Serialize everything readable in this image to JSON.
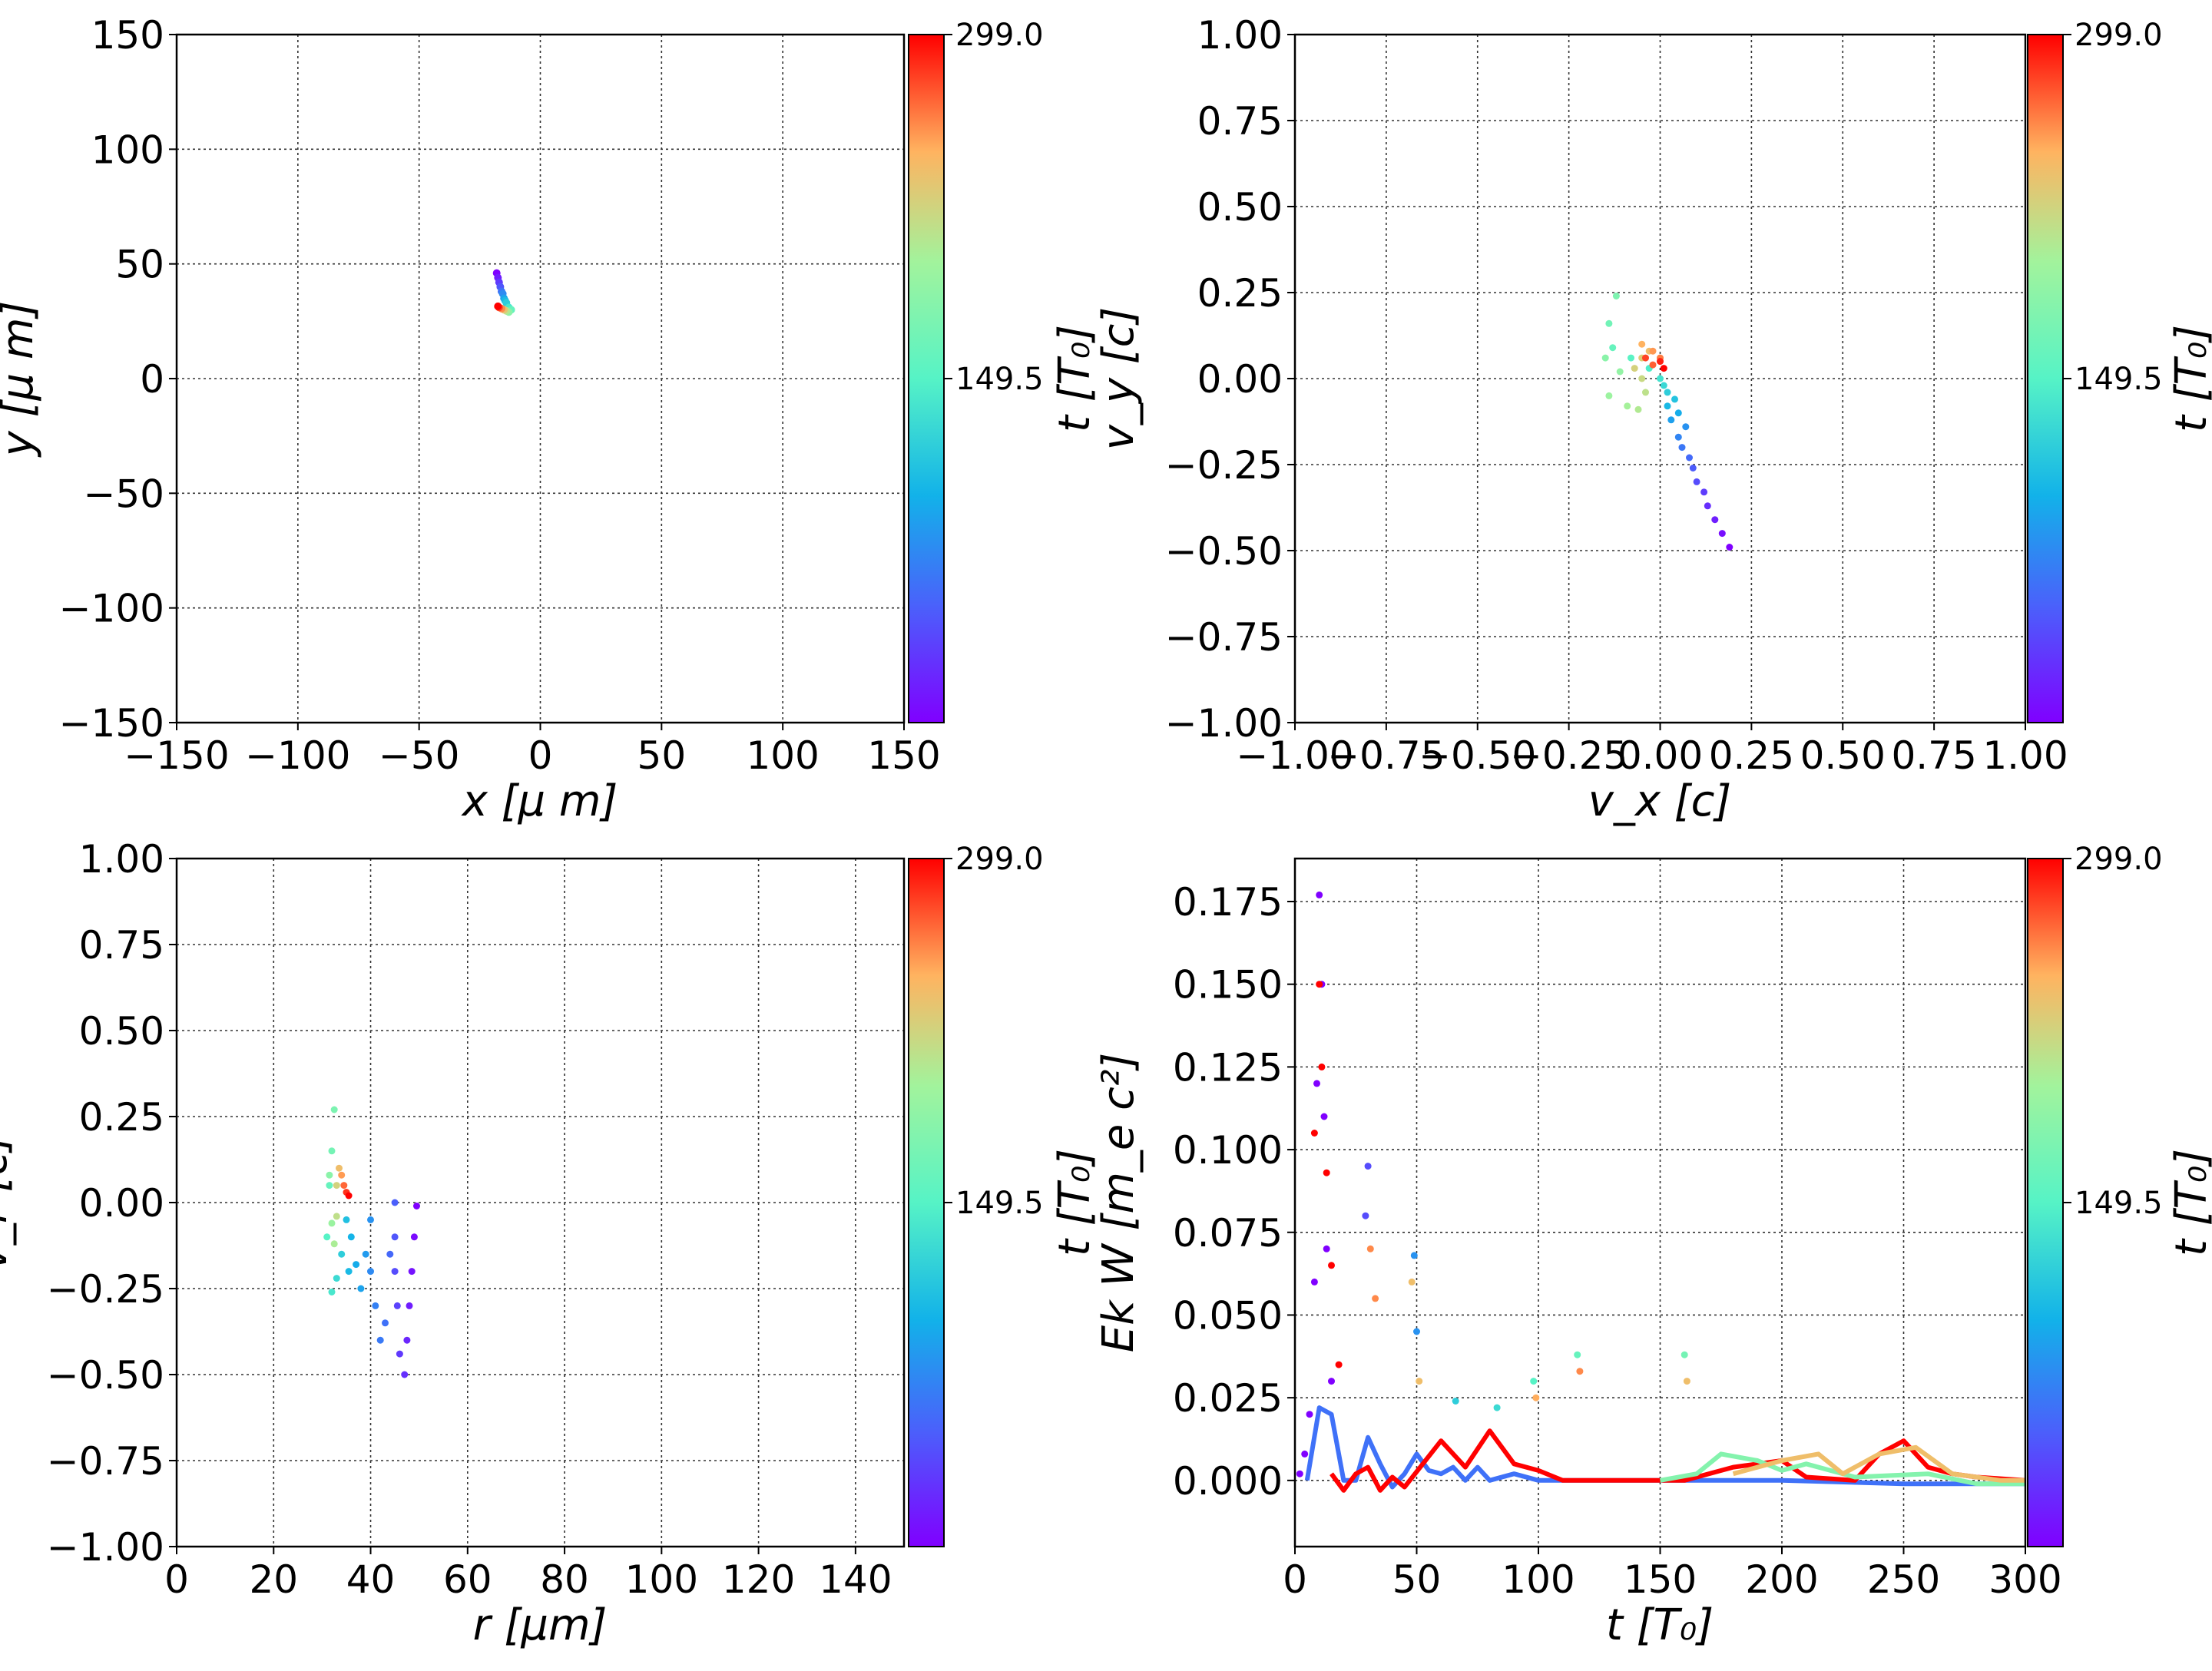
{
  "colormap": "rainbow",
  "colorbar": {
    "min": 0,
    "max": 299.0,
    "ticks": [
      "299.0",
      "149.5"
    ],
    "label": "t [T₀]"
  },
  "chart_data": [
    {
      "type": "scatter",
      "id": "xy",
      "xlabel": "x  [μ m]",
      "ylabel": "y  [μ m]",
      "xlim": [
        -150,
        150
      ],
      "ylim": [
        -150,
        150
      ],
      "xticks": [
        "−150",
        "−100",
        "−50",
        "0",
        "50",
        "100",
        "150"
      ],
      "yticks": [
        "150",
        "100",
        "50",
        "0",
        "−50",
        "−100",
        "−150"
      ],
      "grid": true,
      "points": [
        {
          "x": -18,
          "y": 46,
          "t": 0
        },
        {
          "x": -17.5,
          "y": 44,
          "t": 15
        },
        {
          "x": -17,
          "y": 42,
          "t": 30
        },
        {
          "x": -16.5,
          "y": 40,
          "t": 45
        },
        {
          "x": -16,
          "y": 38,
          "t": 60
        },
        {
          "x": -15.5,
          "y": 37,
          "t": 75
        },
        {
          "x": -15,
          "y": 35,
          "t": 90
        },
        {
          "x": -14.5,
          "y": 34,
          "t": 105
        },
        {
          "x": -14,
          "y": 33,
          "t": 120
        },
        {
          "x": -13,
          "y": 31,
          "t": 140
        },
        {
          "x": -12,
          "y": 30,
          "t": 160
        },
        {
          "x": -13,
          "y": 29,
          "t": 185
        },
        {
          "x": -14,
          "y": 29.5,
          "t": 210
        },
        {
          "x": -15,
          "y": 30,
          "t": 235
        },
        {
          "x": -16,
          "y": 30.5,
          "t": 260
        },
        {
          "x": -17,
          "y": 31,
          "t": 280
        },
        {
          "x": -17.5,
          "y": 31.5,
          "t": 299
        }
      ]
    },
    {
      "type": "scatter",
      "id": "vxvy",
      "xlabel": "v_x [c]",
      "ylabel": "v_y [c]",
      "xlim": [
        -1,
        1
      ],
      "ylim": [
        -1,
        1
      ],
      "xticks": [
        "−1.00",
        "−0.75",
        "−0.50",
        "−0.25",
        "0.00",
        "0.25",
        "0.50",
        "0.75",
        "1.00"
      ],
      "yticks": [
        "1.00",
        "0.75",
        "0.50",
        "0.25",
        "0.00",
        "−0.25",
        "−0.50",
        "−0.75",
        "−1.00"
      ],
      "grid": true,
      "points": [
        {
          "x": 0.19,
          "y": -0.49,
          "t": 0
        },
        {
          "x": 0.17,
          "y": -0.45,
          "t": 8
        },
        {
          "x": 0.15,
          "y": -0.41,
          "t": 16
        },
        {
          "x": 0.13,
          "y": -0.37,
          "t": 24
        },
        {
          "x": 0.12,
          "y": -0.33,
          "t": 32
        },
        {
          "x": 0.1,
          "y": -0.3,
          "t": 40
        },
        {
          "x": 0.09,
          "y": -0.26,
          "t": 48
        },
        {
          "x": 0.08,
          "y": -0.23,
          "t": 56
        },
        {
          "x": 0.06,
          "y": -0.2,
          "t": 64
        },
        {
          "x": 0.05,
          "y": -0.17,
          "t": 72
        },
        {
          "x": 0.07,
          "y": -0.14,
          "t": 80
        },
        {
          "x": 0.03,
          "y": -0.12,
          "t": 88
        },
        {
          "x": 0.05,
          "y": -0.1,
          "t": 96
        },
        {
          "x": 0.02,
          "y": -0.08,
          "t": 104
        },
        {
          "x": 0.04,
          "y": -0.06,
          "t": 112
        },
        {
          "x": 0.02,
          "y": -0.04,
          "t": 120
        },
        {
          "x": 0.01,
          "y": -0.02,
          "t": 128
        },
        {
          "x": 0.0,
          "y": 0.0,
          "t": 136
        },
        {
          "x": -0.03,
          "y": 0.03,
          "t": 144
        },
        {
          "x": -0.08,
          "y": 0.06,
          "t": 152
        },
        {
          "x": -0.13,
          "y": 0.09,
          "t": 160
        },
        {
          "x": -0.14,
          "y": 0.16,
          "t": 168
        },
        {
          "x": -0.12,
          "y": 0.24,
          "t": 176
        },
        {
          "x": -0.15,
          "y": 0.06,
          "t": 184
        },
        {
          "x": -0.11,
          "y": 0.02,
          "t": 190
        },
        {
          "x": -0.14,
          "y": -0.05,
          "t": 196
        },
        {
          "x": -0.09,
          "y": -0.08,
          "t": 202
        },
        {
          "x": -0.06,
          "y": -0.09,
          "t": 208
        },
        {
          "x": -0.04,
          "y": -0.04,
          "t": 214
        },
        {
          "x": -0.05,
          "y": 0.0,
          "t": 220
        },
        {
          "x": -0.07,
          "y": 0.03,
          "t": 226
        },
        {
          "x": -0.05,
          "y": 0.06,
          "t": 232
        },
        {
          "x": -0.03,
          "y": 0.08,
          "t": 240
        },
        {
          "x": -0.05,
          "y": 0.1,
          "t": 248
        },
        {
          "x": -0.02,
          "y": 0.08,
          "t": 256
        },
        {
          "x": 0.0,
          "y": 0.06,
          "t": 264
        },
        {
          "x": -0.02,
          "y": 0.04,
          "t": 272
        },
        {
          "x": -0.04,
          "y": 0.06,
          "t": 280
        },
        {
          "x": 0.0,
          "y": 0.05,
          "t": 290
        },
        {
          "x": 0.01,
          "y": 0.03,
          "t": 299
        }
      ]
    },
    {
      "type": "scatter",
      "id": "rvr",
      "xlabel": "r [μm]",
      "ylabel": "v_r [c]",
      "xlim": [
        0,
        150
      ],
      "ylim": [
        -1,
        1
      ],
      "xticks": [
        "0",
        "20",
        "40",
        "60",
        "80",
        "100",
        "120",
        "140"
      ],
      "yticks": [
        "1.00",
        "0.75",
        "0.50",
        "0.25",
        "0.00",
        "−0.25",
        "−0.50",
        "−0.75",
        "−1.00"
      ],
      "grid": true,
      "points": [
        {
          "x": 49.5,
          "y": -0.01,
          "t": 0
        },
        {
          "x": 49,
          "y": -0.1,
          "t": 5
        },
        {
          "x": 48.5,
          "y": -0.2,
          "t": 10
        },
        {
          "x": 48,
          "y": -0.3,
          "t": 15
        },
        {
          "x": 47.5,
          "y": -0.4,
          "t": 20
        },
        {
          "x": 47,
          "y": -0.5,
          "t": 25
        },
        {
          "x": 46,
          "y": -0.44,
          "t": 30
        },
        {
          "x": 45.5,
          "y": -0.3,
          "t": 35
        },
        {
          "x": 45,
          "y": -0.2,
          "t": 40
        },
        {
          "x": 45,
          "y": -0.1,
          "t": 45
        },
        {
          "x": 45,
          "y": 0.0,
          "t": 50
        },
        {
          "x": 44,
          "y": -0.15,
          "t": 55
        },
        {
          "x": 43,
          "y": -0.35,
          "t": 60
        },
        {
          "x": 42,
          "y": -0.4,
          "t": 65
        },
        {
          "x": 41,
          "y": -0.3,
          "t": 70
        },
        {
          "x": 40,
          "y": -0.2,
          "t": 75
        },
        {
          "x": 40,
          "y": -0.05,
          "t": 80
        },
        {
          "x": 39,
          "y": -0.15,
          "t": 85
        },
        {
          "x": 38,
          "y": -0.25,
          "t": 90
        },
        {
          "x": 37,
          "y": -0.18,
          "t": 95
        },
        {
          "x": 36,
          "y": -0.1,
          "t": 100
        },
        {
          "x": 35.5,
          "y": -0.2,
          "t": 105
        },
        {
          "x": 35,
          "y": -0.05,
          "t": 110
        },
        {
          "x": 34,
          "y": -0.15,
          "t": 120
        },
        {
          "x": 33,
          "y": -0.22,
          "t": 130
        },
        {
          "x": 32,
          "y": -0.26,
          "t": 140
        },
        {
          "x": 31,
          "y": -0.1,
          "t": 150
        },
        {
          "x": 31.5,
          "y": 0.05,
          "t": 160
        },
        {
          "x": 32,
          "y": 0.15,
          "t": 170
        },
        {
          "x": 32.5,
          "y": 0.27,
          "t": 175
        },
        {
          "x": 31.5,
          "y": 0.08,
          "t": 185
        },
        {
          "x": 32,
          "y": -0.06,
          "t": 195
        },
        {
          "x": 32.5,
          "y": -0.12,
          "t": 205
        },
        {
          "x": 33,
          "y": -0.04,
          "t": 215
        },
        {
          "x": 33,
          "y": 0.05,
          "t": 225
        },
        {
          "x": 33.5,
          "y": 0.1,
          "t": 240
        },
        {
          "x": 34,
          "y": 0.08,
          "t": 255
        },
        {
          "x": 34.5,
          "y": 0.05,
          "t": 270
        },
        {
          "x": 35,
          "y": 0.03,
          "t": 285
        },
        {
          "x": 35.5,
          "y": 0.02,
          "t": 299
        }
      ]
    },
    {
      "type": "scatter",
      "id": "ekw",
      "xlabel": "t [T₀]",
      "ylabel": "Ek W [m_e c²]",
      "xlim": [
        0,
        300
      ],
      "ylim": [
        -0.02,
        0.188
      ],
      "xticks": [
        "0",
        "50",
        "100",
        "150",
        "200",
        "250",
        "300"
      ],
      "yticks": [
        "0.175",
        "0.150",
        "0.125",
        "0.100",
        "0.075",
        "0.050",
        "0.025",
        "0.000"
      ],
      "grid": true,
      "points": [
        {
          "x": 2,
          "y": 0.002,
          "t": 0
        },
        {
          "x": 4,
          "y": 0.008,
          "t": 0
        },
        {
          "x": 6,
          "y": 0.02,
          "t": 0
        },
        {
          "x": 8,
          "y": 0.06,
          "t": 0
        },
        {
          "x": 9,
          "y": 0.12,
          "t": 0
        },
        {
          "x": 10,
          "y": 0.177,
          "t": 0
        },
        {
          "x": 11,
          "y": 0.15,
          "t": 0
        },
        {
          "x": 12,
          "y": 0.11,
          "t": 0
        },
        {
          "x": 13,
          "y": 0.07,
          "t": 0
        },
        {
          "x": 15,
          "y": 0.03,
          "t": 0
        },
        {
          "x": 8,
          "y": 0.105,
          "t": 299
        },
        {
          "x": 10,
          "y": 0.15,
          "t": 299
        },
        {
          "x": 11,
          "y": 0.125,
          "t": 299
        },
        {
          "x": 13,
          "y": 0.093,
          "t": 299
        },
        {
          "x": 15,
          "y": 0.065,
          "t": 299
        },
        {
          "x": 18,
          "y": 0.035,
          "t": 299
        },
        {
          "x": 30,
          "y": 0.095,
          "t": 40
        },
        {
          "x": 31,
          "y": 0.07,
          "t": 260
        },
        {
          "x": 33,
          "y": 0.055,
          "t": 260
        },
        {
          "x": 29,
          "y": 0.08,
          "t": 40
        },
        {
          "x": 49,
          "y": 0.068,
          "t": 80
        },
        {
          "x": 50,
          "y": 0.045,
          "t": 80
        },
        {
          "x": 51,
          "y": 0.03,
          "t": 240
        },
        {
          "x": 48,
          "y": 0.06,
          "t": 240
        },
        {
          "x": 66,
          "y": 0.024,
          "t": 120
        },
        {
          "x": 83,
          "y": 0.022,
          "t": 130
        },
        {
          "x": 98,
          "y": 0.03,
          "t": 150
        },
        {
          "x": 99,
          "y": 0.025,
          "t": 250
        },
        {
          "x": 116,
          "y": 0.038,
          "t": 160
        },
        {
          "x": 117,
          "y": 0.033,
          "t": 260
        },
        {
          "x": 160,
          "y": 0.038,
          "t": 170
        },
        {
          "x": 161,
          "y": 0.03,
          "t": 240
        }
      ],
      "curves": [
        {
          "t": 60,
          "points": [
            [
              5,
              0.0
            ],
            [
              10,
              0.022
            ],
            [
              15,
              0.02
            ],
            [
              20,
              0.0
            ],
            [
              25,
              0.0
            ],
            [
              30,
              0.013
            ],
            [
              35,
              0.005
            ],
            [
              40,
              -0.002
            ],
            [
              45,
              0.002
            ],
            [
              50,
              0.008
            ],
            [
              55,
              0.003
            ],
            [
              60,
              0.002
            ],
            [
              65,
              0.004
            ],
            [
              70,
              0.0
            ],
            [
              75,
              0.004
            ],
            [
              80,
              0.0
            ],
            [
              90,
              0.002
            ],
            [
              100,
              0.0
            ],
            [
              120,
              0.0
            ],
            [
              150,
              0.0
            ],
            [
              200,
              0.0
            ],
            [
              250,
              -0.001
            ],
            [
              300,
              -0.001
            ]
          ]
        },
        {
          "t": 299,
          "points": [
            [
              15,
              0.002
            ],
            [
              20,
              -0.003
            ],
            [
              25,
              0.002
            ],
            [
              30,
              0.004
            ],
            [
              35,
              -0.003
            ],
            [
              40,
              0.001
            ],
            [
              45,
              -0.002
            ],
            [
              60,
              0.012
            ],
            [
              70,
              0.004
            ],
            [
              80,
              0.015
            ],
            [
              90,
              0.005
            ],
            [
              100,
              0.003
            ],
            [
              110,
              0.0
            ],
            [
              130,
              0.0
            ],
            [
              160,
              0.0
            ],
            [
              180,
              0.004
            ],
            [
              200,
              0.006
            ],
            [
              210,
              0.001
            ],
            [
              230,
              0.0
            ],
            [
              240,
              0.008
            ],
            [
              250,
              0.012
            ],
            [
              260,
              0.004
            ],
            [
              270,
              0.002
            ],
            [
              280,
              0.001
            ],
            [
              300,
              0.0
            ]
          ]
        },
        {
          "t": 180,
          "points": [
            [
              150,
              0.0
            ],
            [
              165,
              0.002
            ],
            [
              175,
              0.008
            ],
            [
              190,
              0.006
            ],
            [
              200,
              0.003
            ],
            [
              210,
              0.005
            ],
            [
              230,
              0.001
            ],
            [
              260,
              0.002
            ],
            [
              280,
              -0.001
            ],
            [
              300,
              -0.001
            ]
          ]
        },
        {
          "t": 240,
          "points": [
            [
              180,
              0.002
            ],
            [
              200,
              0.006
            ],
            [
              215,
              0.008
            ],
            [
              225,
              0.002
            ],
            [
              240,
              0.008
            ],
            [
              255,
              0.01
            ],
            [
              270,
              0.002
            ],
            [
              290,
              0.0
            ],
            [
              300,
              0.0
            ]
          ]
        }
      ]
    }
  ]
}
